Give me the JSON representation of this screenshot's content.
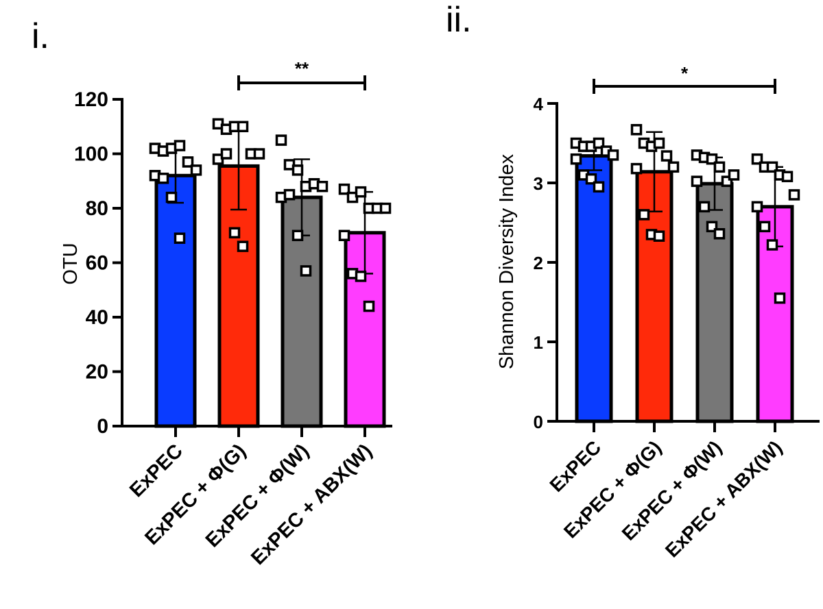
{
  "chart_data": [
    {
      "type": "bar",
      "panel_label": "i.",
      "ylabel": "OTU",
      "xlabel": "",
      "ylim": [
        0,
        120
      ],
      "yticks": [
        0,
        20,
        40,
        60,
        80,
        100,
        120
      ],
      "categories": [
        "ExPEC",
        "ExPEC + Φ(G)",
        "ExPEC + Φ(W)",
        "ExPEC + ABX(W)"
      ],
      "values": [
        92,
        95.5,
        84,
        71
      ],
      "error_sd": [
        10,
        16,
        14,
        15
      ],
      "colors": [
        "#0a3cff",
        "#ff2a0a",
        "#777777",
        "#ff3cff"
      ],
      "points": [
        [
          102,
          101,
          102,
          103,
          97,
          94,
          92,
          91,
          84,
          69
        ],
        [
          111,
          109,
          110,
          110,
          100,
          100,
          98,
          100,
          71,
          66
        ],
        [
          105,
          96,
          94,
          88,
          89,
          88,
          84,
          85,
          70,
          57
        ],
        [
          87,
          84,
          86,
          80,
          80,
          80,
          70,
          56,
          55,
          44
        ]
      ],
      "significance": {
        "from": 1,
        "to": 3,
        "label": "**"
      }
    },
    {
      "type": "bar",
      "panel_label": "ii.",
      "ylabel": "Shannon Diversity Index",
      "xlabel": "",
      "ylim": [
        0,
        4
      ],
      "yticks": [
        0,
        1,
        2,
        3,
        4
      ],
      "categories": [
        "ExPEC",
        "ExPEC + Φ(G)",
        "ExPEC + Φ(W)",
        "ExPEC + ABX(W)"
      ],
      "values": [
        3.34,
        3.14,
        2.99,
        2.7
      ],
      "error_sd": [
        0.18,
        0.5,
        0.33,
        0.5
      ],
      "colors": [
        "#0a3cff",
        "#ff2a0a",
        "#777777",
        "#ff3cff"
      ],
      "points": [
        [
          3.5,
          3.46,
          3.46,
          3.5,
          3.4,
          3.35,
          3.3,
          3.1,
          3.05,
          2.95
        ],
        [
          3.67,
          3.5,
          3.46,
          3.5,
          3.34,
          3.2,
          3.18,
          2.6,
          2.35,
          2.33
        ],
        [
          3.35,
          3.32,
          3.3,
          3.2,
          3.02,
          3.1,
          3.02,
          2.7,
          2.45,
          2.36
        ],
        [
          3.3,
          3.2,
          3.2,
          3.1,
          3.08,
          2.85,
          2.7,
          2.45,
          2.22,
          1.55
        ]
      ],
      "significance": {
        "from": 0,
        "to": 3,
        "label": "*"
      }
    }
  ]
}
